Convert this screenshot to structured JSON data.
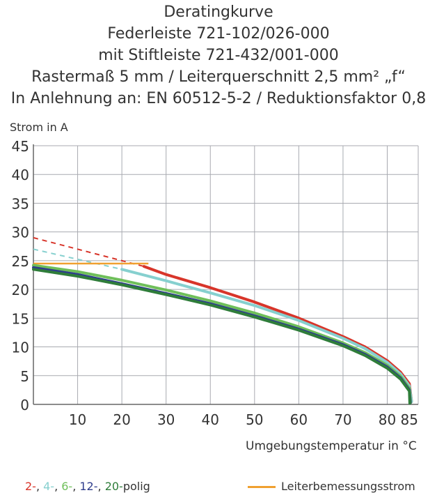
{
  "title_lines": [
    "Deratingkurve",
    "Federleiste 721-102/026-000",
    "mit Stiftleiste 721-432/001-000",
    "Rastermaß 5 mm / Leiterquerschnitt 2,5 mm² „f“",
    "In Anlehnung an: EN 60512-5-2 / Reduktionsfaktor 0,8"
  ],
  "chart_data": {
    "type": "line",
    "ylabel": "Strom in A",
    "xlabel": "Umgebungstemperatur in °C",
    "xlim": [
      0,
      87
    ],
    "ylim": [
      0,
      45
    ],
    "x_ticks": [
      10,
      20,
      30,
      40,
      50,
      60,
      70,
      80,
      85
    ],
    "y_ticks": [
      0,
      5,
      10,
      15,
      20,
      25,
      30,
      35,
      40,
      45
    ],
    "grid": true,
    "series": [
      {
        "name": "2-",
        "color": "#d8352a",
        "dashed": [
          [
            0,
            29.0
          ],
          [
            25,
            24.0
          ]
        ],
        "values": [
          [
            25,
            24.0
          ],
          [
            30,
            22.6
          ],
          [
            40,
            20.3
          ],
          [
            50,
            17.8
          ],
          [
            60,
            15.0
          ],
          [
            70,
            11.8
          ],
          [
            75,
            10.0
          ],
          [
            80,
            7.6
          ],
          [
            83,
            5.6
          ],
          [
            85,
            3.6
          ],
          [
            85.5,
            0.5
          ]
        ]
      },
      {
        "name": "4-",
        "color": "#86d0cf",
        "dashed": [
          [
            0,
            27.0
          ],
          [
            20,
            23.5
          ]
        ],
        "values": [
          [
            20,
            23.5
          ],
          [
            30,
            21.5
          ],
          [
            40,
            19.4
          ],
          [
            50,
            17.2
          ],
          [
            60,
            14.6
          ],
          [
            70,
            11.5
          ],
          [
            75,
            9.7
          ],
          [
            80,
            7.3
          ],
          [
            83,
            5.3
          ],
          [
            85,
            3.2
          ],
          [
            85.5,
            0.5
          ]
        ]
      },
      {
        "name": "6-",
        "color": "#6fbf5a",
        "values": [
          [
            0,
            24.2
          ],
          [
            10,
            23.1
          ],
          [
            20,
            21.6
          ],
          [
            30,
            19.9
          ],
          [
            40,
            18.0
          ],
          [
            50,
            15.9
          ],
          [
            60,
            13.5
          ],
          [
            70,
            10.7
          ],
          [
            75,
            9.0
          ],
          [
            80,
            6.8
          ],
          [
            83,
            4.9
          ],
          [
            85,
            2.8
          ],
          [
            85.3,
            0.3
          ]
        ]
      },
      {
        "name": "12-",
        "color": "#2e3c8c",
        "values": [
          [
            0,
            23.8
          ],
          [
            10,
            22.6
          ],
          [
            20,
            21.0
          ],
          [
            30,
            19.3
          ],
          [
            40,
            17.5
          ],
          [
            50,
            15.4
          ],
          [
            60,
            13.1
          ],
          [
            70,
            10.4
          ],
          [
            75,
            8.7
          ],
          [
            80,
            6.5
          ],
          [
            83,
            4.6
          ],
          [
            85,
            2.5
          ],
          [
            85.2,
            0.3
          ]
        ]
      },
      {
        "name": "20-",
        "color": "#2f7d3a",
        "values": [
          [
            0,
            23.5
          ],
          [
            10,
            22.3
          ],
          [
            20,
            20.8
          ],
          [
            30,
            19.1
          ],
          [
            40,
            17.3
          ],
          [
            50,
            15.2
          ],
          [
            60,
            12.9
          ],
          [
            70,
            10.2
          ],
          [
            75,
            8.5
          ],
          [
            80,
            6.3
          ],
          [
            83,
            4.4
          ],
          [
            85,
            2.3
          ],
          [
            85.1,
            0.2
          ]
        ]
      }
    ],
    "reference_line": {
      "name": "Leiterbemessungsstrom",
      "color": "#f0a030",
      "values": [
        [
          0,
          24.5
        ],
        [
          26,
          24.5
        ]
      ]
    }
  },
  "legend": {
    "series_parts": [
      {
        "text": "2-",
        "color": "#d8352a"
      },
      {
        "text": ", ",
        "color": "#333333"
      },
      {
        "text": "4-",
        "color": "#86d0cf"
      },
      {
        "text": ", ",
        "color": "#333333"
      },
      {
        "text": "6-",
        "color": "#6fbf5a"
      },
      {
        "text": ", ",
        "color": "#333333"
      },
      {
        "text": "12-",
        "color": "#2e3c8c"
      },
      {
        "text": ", ",
        "color": "#333333"
      },
      {
        "text": "20-",
        "color": "#2f7d3a"
      },
      {
        "text": "polig",
        "color": "#333333"
      }
    ],
    "reference_label": "Leiterbemessungsstrom"
  }
}
